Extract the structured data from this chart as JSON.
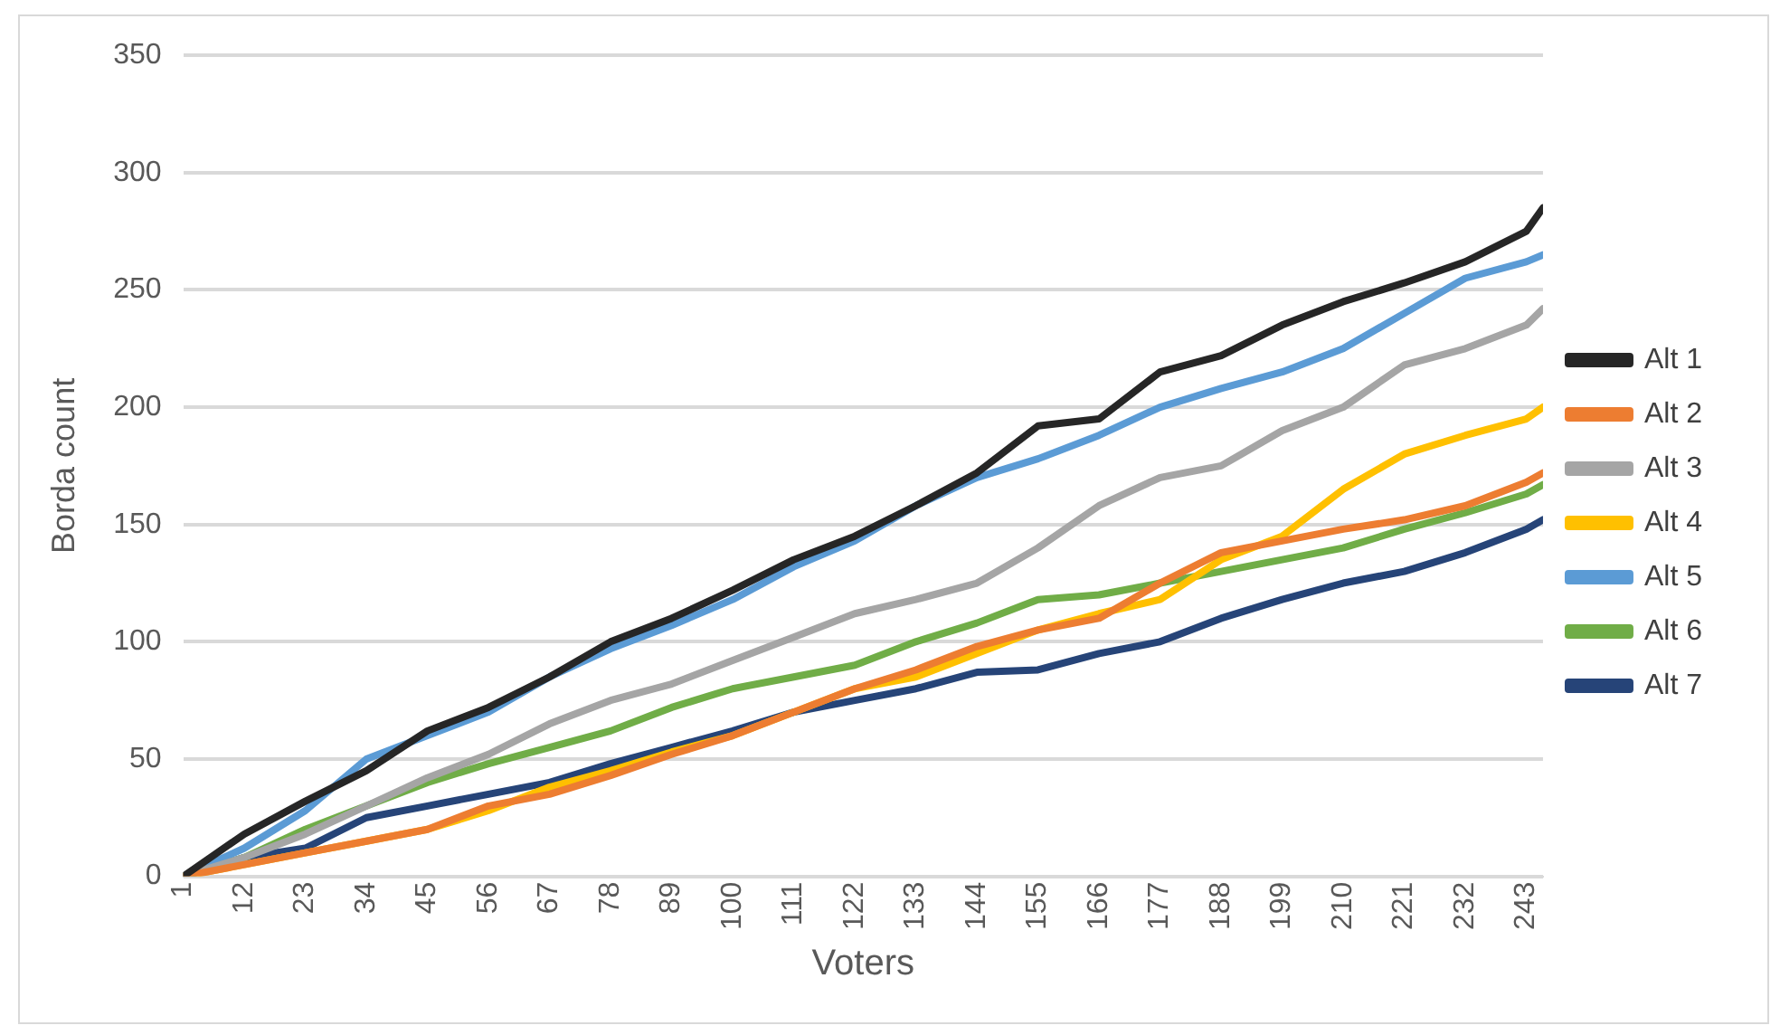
{
  "chart_data": {
    "type": "line",
    "xlabel": "Voters",
    "ylabel": "Borda count",
    "x": [
      1,
      12,
      23,
      34,
      45,
      56,
      67,
      78,
      89,
      100,
      111,
      122,
      133,
      144,
      155,
      166,
      177,
      188,
      199,
      210,
      221,
      232,
      243,
      246
    ],
    "xlim": [
      1,
      246
    ],
    "xticks": [
      1,
      12,
      23,
      34,
      45,
      56,
      67,
      78,
      89,
      100,
      111,
      122,
      133,
      144,
      155,
      166,
      177,
      188,
      199,
      210,
      221,
      232,
      243
    ],
    "ylim": [
      0,
      350
    ],
    "yticks": [
      0,
      50,
      100,
      150,
      200,
      250,
      300,
      350
    ],
    "grid": "y",
    "legend": "right",
    "marker": "none",
    "line_style": "solid",
    "series": [
      {
        "name": "Alt 1",
        "color": "#262626",
        "values": [
          0,
          18,
          32,
          45,
          62,
          72,
          85,
          100,
          110,
          122,
          135,
          145,
          158,
          172,
          192,
          195,
          215,
          222,
          235,
          245,
          253,
          262,
          275,
          285
        ]
      },
      {
        "name": "Alt 2",
        "color": "#ed7d31",
        "values": [
          0,
          5,
          10,
          15,
          20,
          30,
          35,
          43,
          52,
          60,
          70,
          80,
          88,
          98,
          105,
          110,
          125,
          138,
          143,
          148,
          152,
          158,
          168,
          172
        ]
      },
      {
        "name": "Alt 3",
        "color": "#a5a5a5",
        "values": [
          0,
          8,
          18,
          30,
          42,
          52,
          65,
          75,
          82,
          92,
          102,
          112,
          118,
          125,
          140,
          158,
          170,
          175,
          190,
          200,
          218,
          225,
          235,
          242
        ]
      },
      {
        "name": "Alt 4",
        "color": "#ffc000",
        "values": [
          0,
          5,
          10,
          15,
          20,
          28,
          38,
          45,
          53,
          60,
          70,
          80,
          85,
          95,
          105,
          112,
          118,
          135,
          145,
          165,
          180,
          188,
          195,
          200
        ]
      },
      {
        "name": "Alt 5",
        "color": "#5b9bd5",
        "values": [
          0,
          12,
          28,
          50,
          60,
          70,
          85,
          97,
          107,
          118,
          132,
          143,
          158,
          170,
          178,
          188,
          200,
          208,
          215,
          225,
          240,
          255,
          262,
          265
        ]
      },
      {
        "name": "Alt 6",
        "color": "#70ad47",
        "values": [
          0,
          8,
          20,
          30,
          40,
          48,
          55,
          62,
          72,
          80,
          85,
          90,
          100,
          108,
          118,
          120,
          125,
          130,
          135,
          140,
          148,
          155,
          163,
          167
        ]
      },
      {
        "name": "Alt 7",
        "color": "#264478",
        "values": [
          0,
          8,
          12,
          25,
          30,
          35,
          40,
          48,
          55,
          62,
          70,
          75,
          80,
          87,
          88,
          95,
          100,
          110,
          118,
          125,
          130,
          138,
          148,
          152
        ]
      }
    ]
  }
}
